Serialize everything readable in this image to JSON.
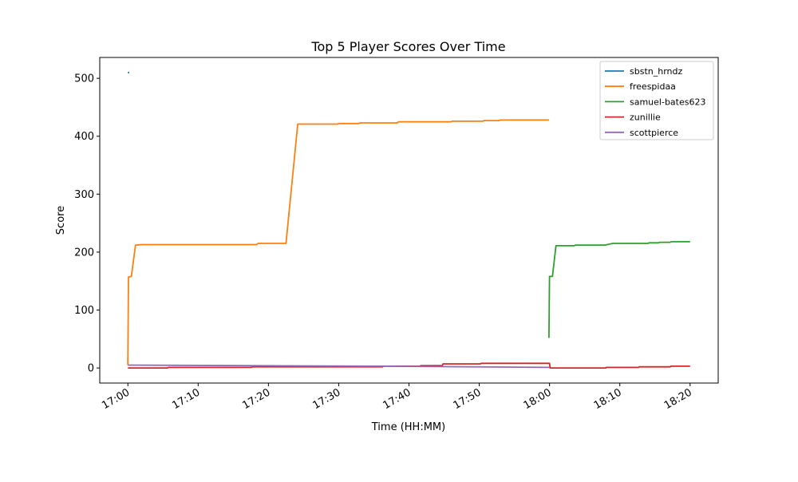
{
  "chart_data": {
    "type": "line",
    "title": "Top 5 Player Scores Over Time",
    "xlabel": "Time (HH:MM)",
    "ylabel": "Score",
    "xlim": [
      "16:56:00",
      "18:24:00"
    ],
    "ylim": [
      -26,
      536
    ],
    "x_ticks": [
      "17:00",
      "17:10",
      "17:20",
      "17:30",
      "17:40",
      "17:50",
      "18:00",
      "18:10",
      "18:20"
    ],
    "y_ticks": [
      0,
      100,
      200,
      300,
      400,
      500
    ],
    "grid": false,
    "legend_position": "top-right",
    "series": [
      {
        "name": "sbstn_hrndz",
        "color": "#1f77b4",
        "points": [
          [
            "17:00:00",
            510
          ],
          [
            "17:00:12",
            510
          ]
        ]
      },
      {
        "name": "freespidaa",
        "color": "#ff7f0e",
        "points": [
          [
            "17:00:00",
            5
          ],
          [
            "17:00:05",
            157
          ],
          [
            "17:00:30",
            158
          ],
          [
            "17:01:05",
            212
          ],
          [
            "17:02:00",
            213
          ],
          [
            "17:18:20",
            213
          ],
          [
            "17:18:30",
            215
          ],
          [
            "17:22:30",
            215
          ],
          [
            "17:24:10",
            421
          ],
          [
            "17:29:50",
            421
          ],
          [
            "17:30:00",
            422
          ],
          [
            "17:32:50",
            422
          ],
          [
            "17:33:00",
            423
          ],
          [
            "17:38:20",
            423
          ],
          [
            "17:38:30",
            425
          ],
          [
            "17:46:00",
            425
          ],
          [
            "17:46:10",
            426
          ],
          [
            "17:50:30",
            426
          ],
          [
            "17:50:40",
            427
          ],
          [
            "17:52:50",
            427
          ],
          [
            "17:53:00",
            428
          ],
          [
            "17:59:55",
            428
          ]
        ]
      },
      {
        "name": "samuel-bates623",
        "color": "#2ca02c",
        "points": [
          [
            "17:59:55",
            52
          ],
          [
            "18:00:00",
            158
          ],
          [
            "18:00:25",
            158
          ],
          [
            "18:00:55",
            211
          ],
          [
            "18:03:30",
            211
          ],
          [
            "18:03:40",
            212
          ],
          [
            "18:07:50",
            212
          ],
          [
            "18:09:00",
            215
          ],
          [
            "18:14:00",
            215
          ],
          [
            "18:14:10",
            216
          ],
          [
            "18:15:30",
            216
          ],
          [
            "18:15:40",
            217
          ],
          [
            "18:17:10",
            217
          ],
          [
            "18:17:20",
            218
          ],
          [
            "18:20:00",
            218
          ]
        ]
      },
      {
        "name": "zunillie",
        "color": "#d62728",
        "points": [
          [
            "17:00:00",
            0
          ],
          [
            "17:05:40",
            0
          ],
          [
            "17:05:45",
            1
          ],
          [
            "17:17:35",
            1
          ],
          [
            "17:17:40",
            2
          ],
          [
            "17:36:15",
            2
          ],
          [
            "17:36:20",
            3
          ],
          [
            "17:41:35",
            3
          ],
          [
            "17:41:40",
            4
          ],
          [
            "17:44:45",
            4
          ],
          [
            "17:44:50",
            7
          ],
          [
            "17:50:10",
            7
          ],
          [
            "17:50:15",
            8
          ],
          [
            "18:00:00",
            8
          ],
          [
            "18:00:05",
            0
          ],
          [
            "18:08:00",
            0
          ],
          [
            "18:08:05",
            1
          ],
          [
            "18:12:40",
            1
          ],
          [
            "18:12:45",
            2
          ],
          [
            "18:17:10",
            2
          ],
          [
            "18:17:15",
            3
          ],
          [
            "18:20:00",
            3
          ]
        ]
      },
      {
        "name": "scottpierce",
        "color": "#9467bd",
        "points": [
          [
            "17:00:00",
            5
          ],
          [
            "17:36:00",
            3
          ],
          [
            "18:00:00",
            1
          ]
        ]
      }
    ]
  }
}
